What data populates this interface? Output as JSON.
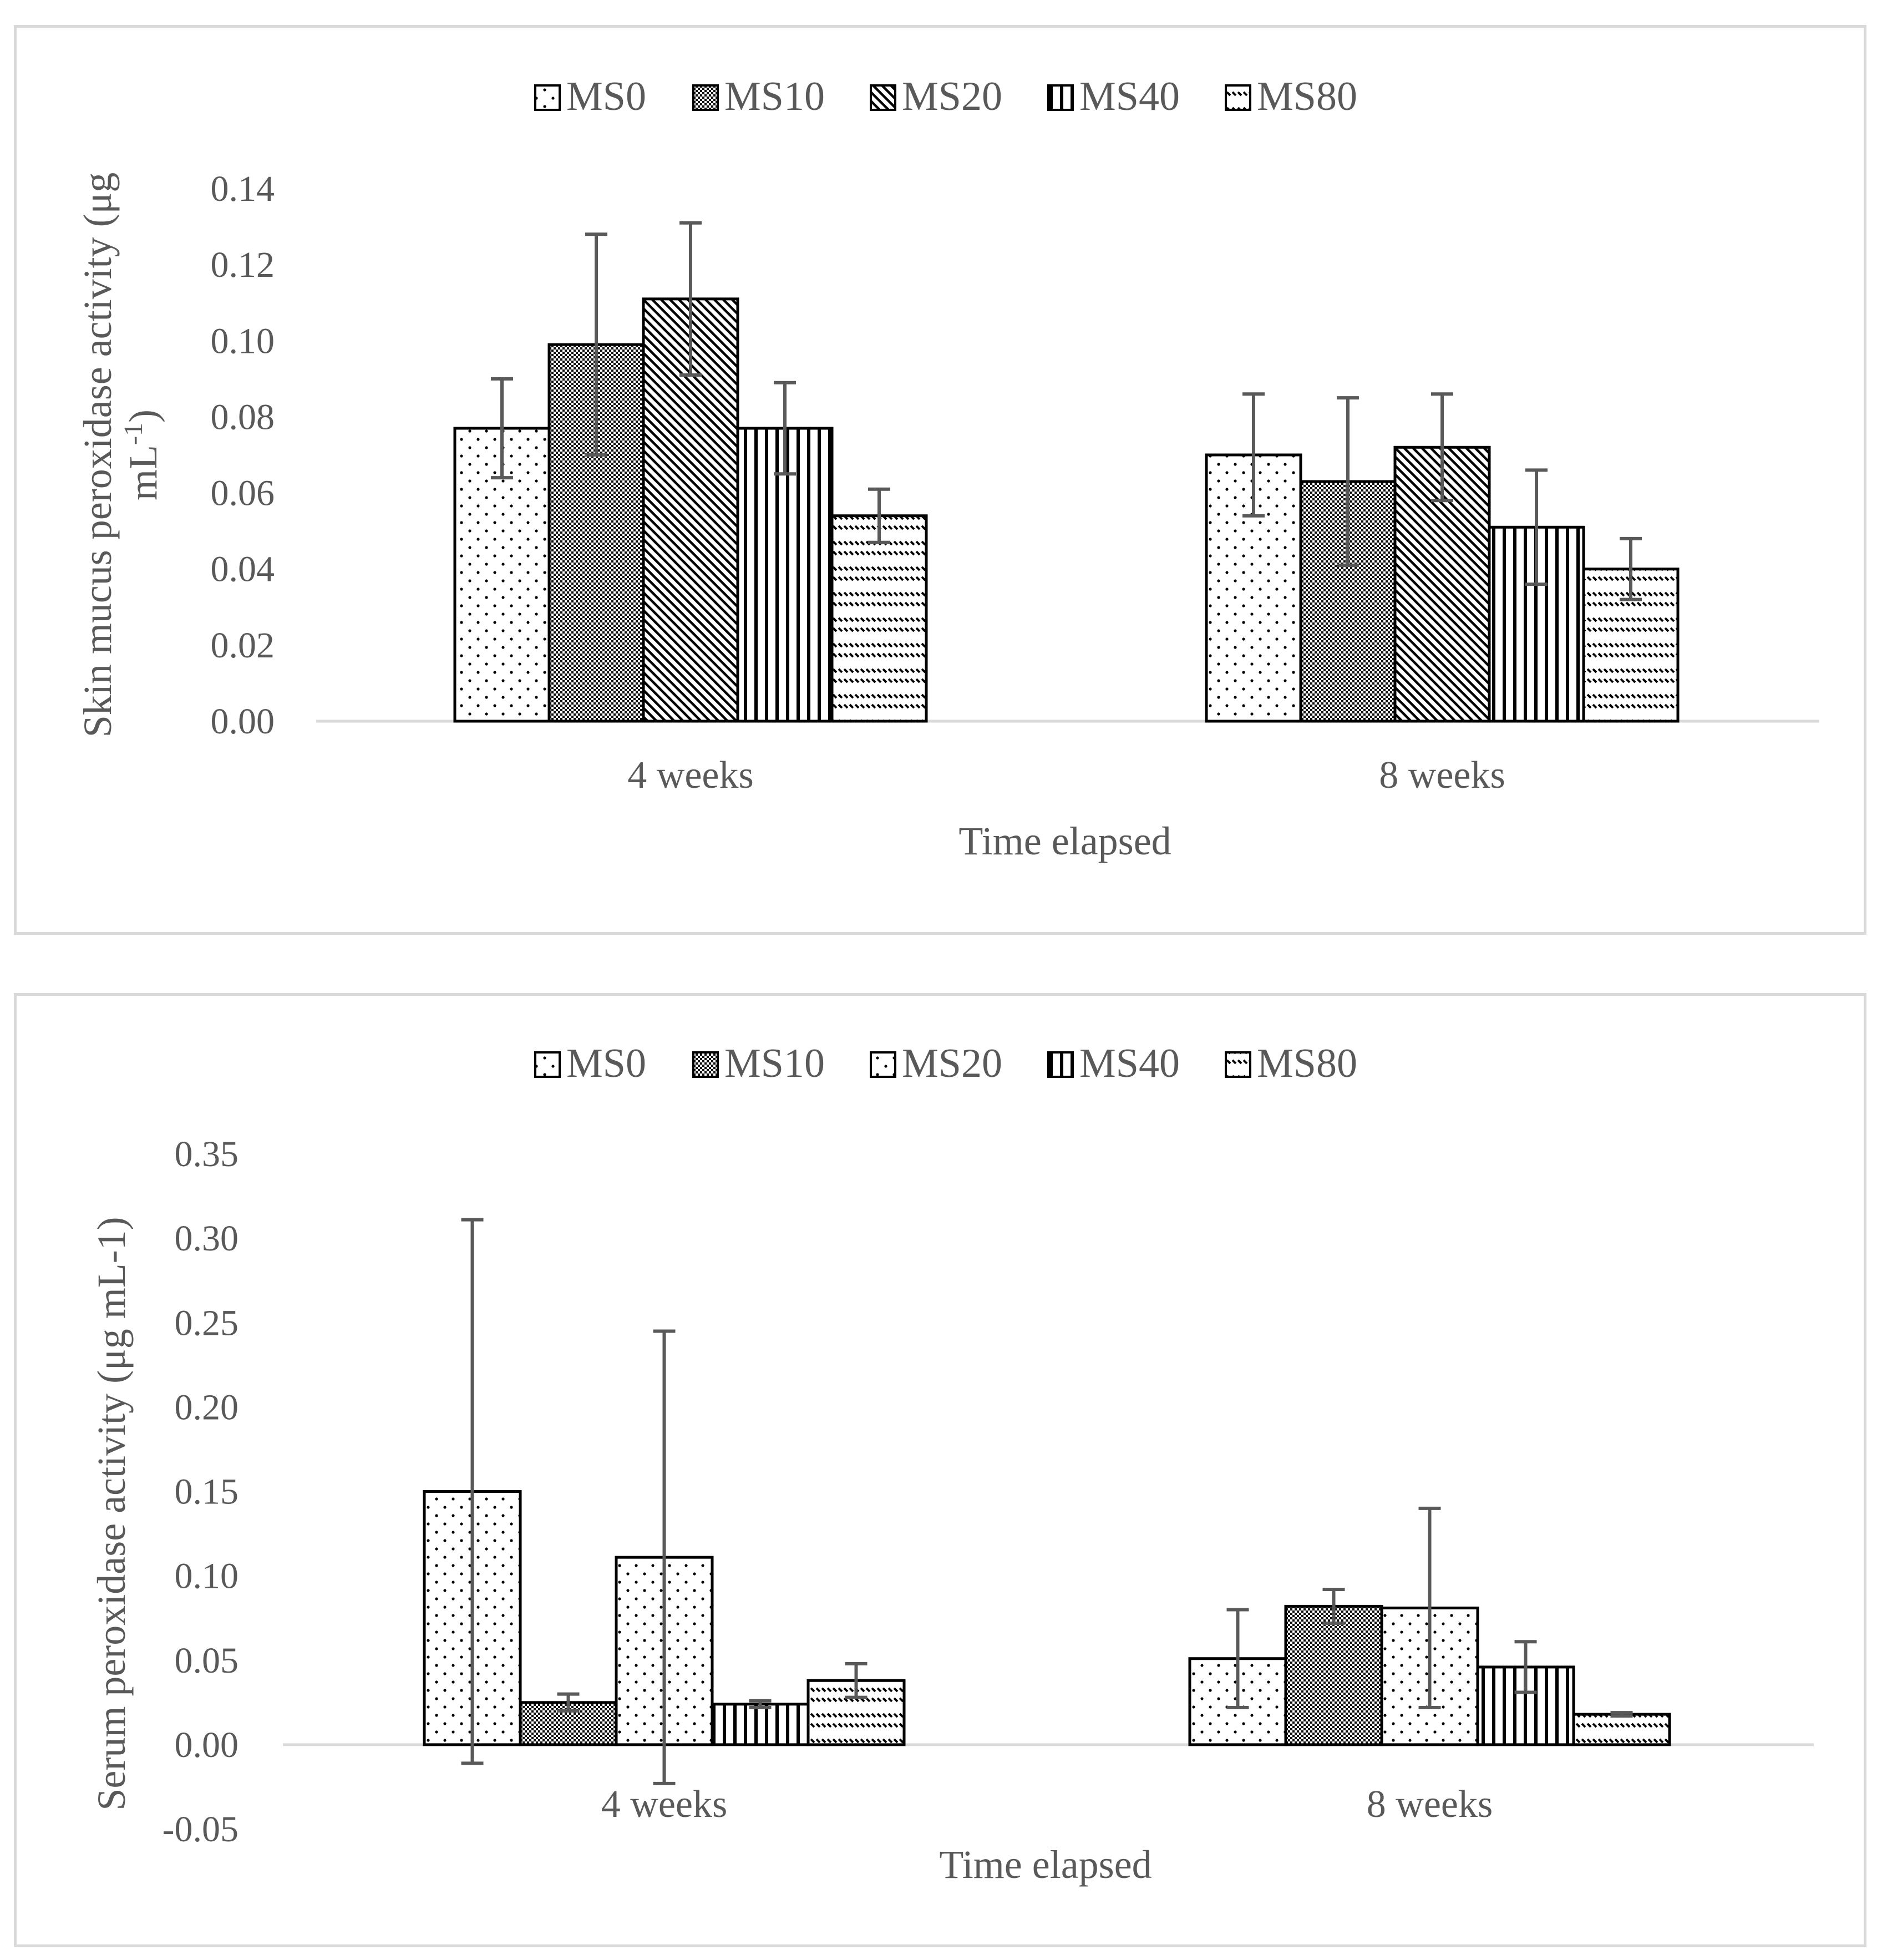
{
  "chart_data": [
    {
      "type": "bar",
      "title": "",
      "xlabel": "Time elapsed",
      "ylabel_line1": "Skin mucus peroxidase activity (μg",
      "ylabel_line2": "mL",
      "ylabel_sup": "-1",
      "ylabel_close": ")",
      "ylim": [
        0,
        0.14
      ],
      "yticks": [
        0.0,
        0.02,
        0.04,
        0.06,
        0.08,
        0.1,
        0.12,
        0.14
      ],
      "tick_labels": [
        "0.00",
        "0.02",
        "0.04",
        "0.06",
        "0.08",
        "0.10",
        "0.12",
        "0.14"
      ],
      "categories": [
        "4 weeks",
        "8 weeks"
      ],
      "legend_position": "top",
      "series": [
        {
          "name": "MS0",
          "pattern": "dots",
          "values": [
            0.077,
            0.07
          ],
          "errors": [
            0.013,
            0.016
          ]
        },
        {
          "name": "MS10",
          "pattern": "check",
          "values": [
            0.099,
            0.063
          ],
          "errors": [
            0.029,
            0.022
          ]
        },
        {
          "name": "MS20",
          "pattern": "diag",
          "values": [
            0.111,
            0.072
          ],
          "errors": [
            0.02,
            0.014
          ]
        },
        {
          "name": "MS40",
          "pattern": "vert",
          "values": [
            0.077,
            0.051
          ],
          "errors": [
            0.012,
            0.015
          ]
        },
        {
          "name": "MS80",
          "pattern": "wave",
          "values": [
            0.054,
            0.04
          ],
          "errors": [
            0.007,
            0.008
          ]
        }
      ]
    },
    {
      "type": "bar",
      "title": "",
      "xlabel": "Time elapsed",
      "ylabel": "Serum peroxidase activity (μg mL-1)",
      "ylim": [
        -0.05,
        0.35
      ],
      "yticks": [
        -0.05,
        0.0,
        0.05,
        0.1,
        0.15,
        0.2,
        0.25,
        0.3,
        0.35
      ],
      "tick_labels": [
        "-0.05",
        "0.00",
        "0.05",
        "0.10",
        "0.15",
        "0.20",
        "0.25",
        "0.30",
        "0.35"
      ],
      "categories": [
        "4 weeks",
        "8 weeks"
      ],
      "legend_position": "top",
      "series": [
        {
          "name": "MS0",
          "pattern": "dots",
          "values": [
            0.15,
            0.051
          ],
          "errors": [
            0.161,
            0.029
          ]
        },
        {
          "name": "MS10",
          "pattern": "check",
          "values": [
            0.025,
            0.082
          ],
          "errors": [
            0.005,
            0.01
          ]
        },
        {
          "name": "MS20",
          "pattern": "dots",
          "values": [
            0.111,
            0.081
          ],
          "errors": [
            0.134,
            0.059
          ]
        },
        {
          "name": "MS40",
          "pattern": "vert",
          "values": [
            0.024,
            0.046
          ],
          "errors": [
            0.002,
            0.015
          ]
        },
        {
          "name": "MS80",
          "pattern": "wave",
          "values": [
            0.038,
            0.018
          ],
          "errors": [
            0.01,
            0.001
          ]
        }
      ]
    }
  ]
}
